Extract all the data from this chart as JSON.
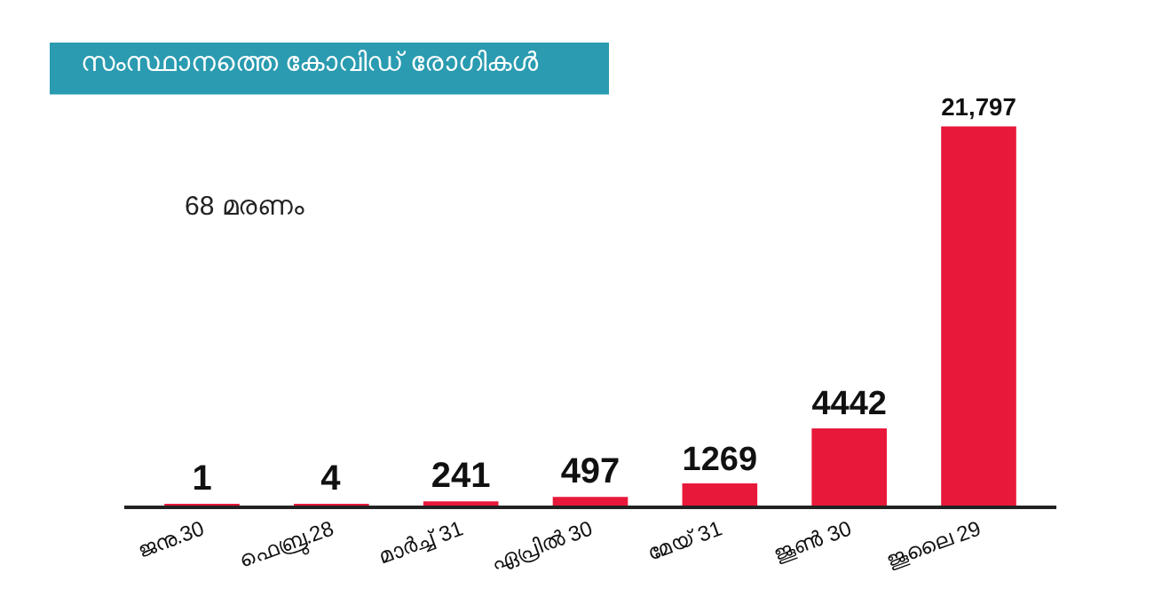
{
  "chart_data": {
    "type": "bar",
    "title": "സംസ്ഥാനത്തെ കോവിഡ് രോഗികൾ",
    "categories": [
      "ജനു.30",
      "ഫെബ്രു.28",
      "മാർച്ച് 31",
      "ഏപ്രിൽ 30",
      "മേയ് 31",
      "ജൂൺ 30",
      "ജൂലൈ 29"
    ],
    "values": [
      1,
      4,
      241,
      497,
      1269,
      4442,
      21797
    ],
    "value_labels": [
      "1",
      "4",
      "241",
      "497",
      "1269",
      "4442",
      "21,797"
    ],
    "color": "#e8183a",
    "annotations": [
      "68 മരണം"
    ]
  }
}
